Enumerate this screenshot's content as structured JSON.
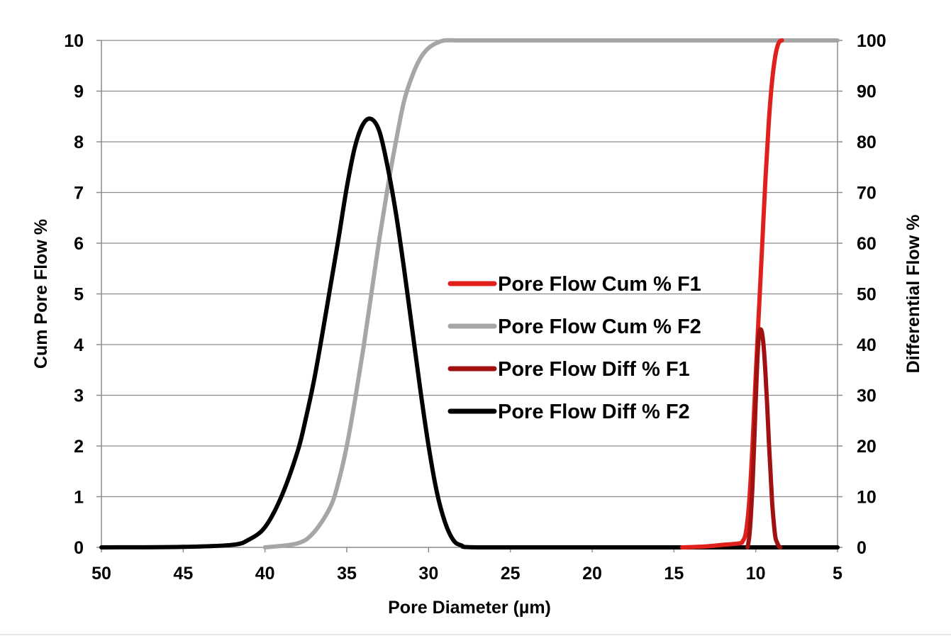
{
  "chart_data": {
    "type": "line",
    "title": "",
    "xlabel": "Pore Diameter (µm)",
    "ylabel_left": "Cum Pore Flow %",
    "ylabel_right": "Differential Flow %",
    "x_reversed": true,
    "xlim": [
      50,
      5
    ],
    "ylim_left": [
      0,
      10
    ],
    "ylim_right": [
      0,
      100
    ],
    "x_ticks": [
      50,
      45,
      40,
      35,
      30,
      25,
      20,
      15,
      10,
      5
    ],
    "y_left_ticks": [
      0,
      1,
      2,
      3,
      4,
      5,
      6,
      7,
      8,
      9,
      10
    ],
    "y_right_ticks": [
      0,
      10,
      20,
      30,
      40,
      50,
      60,
      70,
      80,
      90,
      100
    ],
    "grid": "horizontal",
    "legend_position": "center-right",
    "series": [
      {
        "name": "Pore Flow Cum % F1",
        "axis": "left",
        "color": "#e0201c",
        "x": [
          14.5,
          13,
          12,
          11,
          10.8,
          10.6,
          10.4,
          10.2,
          10.0,
          9.8,
          9.6,
          9.4,
          9.2,
          9.0,
          8.8,
          8.6,
          8.4
        ],
        "y": [
          0,
          0.02,
          0.05,
          0.08,
          0.12,
          0.3,
          0.9,
          2.0,
          3.4,
          4.7,
          6.0,
          7.3,
          8.4,
          9.2,
          9.7,
          9.95,
          10.0
        ]
      },
      {
        "name": "Pore Flow Cum % F2",
        "axis": "left",
        "color": "#a6a6a6",
        "x": [
          40,
          38,
          37,
          36,
          35.5,
          35,
          34.5,
          34,
          33.5,
          33,
          32.5,
          32,
          31.5,
          31,
          30.5,
          30,
          29.5,
          29,
          28,
          26,
          20,
          10,
          5
        ],
        "y": [
          0,
          0.08,
          0.3,
          0.8,
          1.3,
          2.0,
          2.9,
          3.9,
          5.0,
          6.1,
          7.1,
          8.0,
          8.8,
          9.3,
          9.65,
          9.85,
          9.95,
          10.0,
          10.0,
          10.0,
          10.0,
          10.0,
          10.0
        ]
      },
      {
        "name": "Pore Flow Diff % F1",
        "axis": "right",
        "color": "#a01212",
        "x": [
          10.5,
          10.4,
          10.3,
          10.2,
          10.1,
          10.0,
          9.9,
          9.8,
          9.7,
          9.6,
          9.5,
          9.4,
          9.3,
          9.2,
          9.1,
          9.0,
          8.9,
          8.8,
          8.7,
          8.6,
          8.5
        ],
        "y": [
          0,
          2,
          6,
          12,
          20,
          29,
          37,
          42,
          43,
          42,
          39,
          34,
          28,
          21,
          15,
          9,
          5,
          2,
          1,
          0.3,
          0
        ]
      },
      {
        "name": "Pore Flow Diff % F2",
        "axis": "right",
        "color": "#000000",
        "x": [
          50,
          45,
          42,
          41,
          40,
          39,
          38,
          37.5,
          37,
          36.5,
          36,
          35.5,
          35,
          34.5,
          34,
          33.5,
          33,
          32.5,
          32,
          31.5,
          31,
          30.5,
          30,
          29.5,
          29,
          28.5,
          28,
          27,
          20,
          10,
          5
        ],
        "y": [
          0,
          0.1,
          0.5,
          1.5,
          4,
          10,
          19,
          25.5,
          33,
          42,
          51.5,
          61,
          71,
          79,
          83.5,
          84.5,
          82,
          75,
          66,
          55,
          43,
          31,
          20,
          11,
          5,
          1.5,
          0.4,
          0,
          0,
          0,
          0
        ]
      }
    ]
  }
}
